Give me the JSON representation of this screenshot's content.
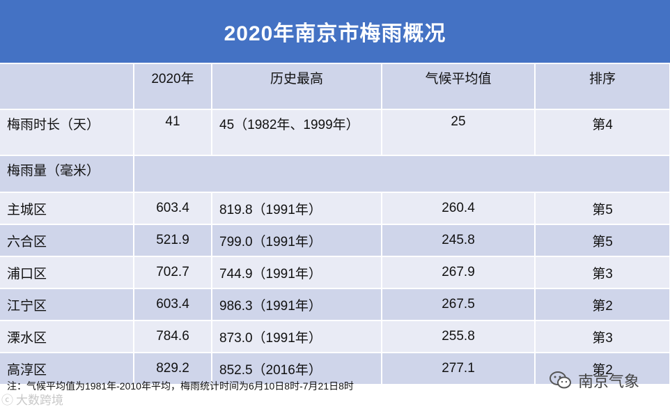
{
  "title": "2020年南京市梅雨概况",
  "header": [
    "",
    "2020年",
    "历史最高",
    "气候平均值",
    "排序"
  ],
  "duration_row": {
    "label": "梅雨时长（天）",
    "y2020": "41",
    "hist_max": "45（1982年、1999年）",
    "avg": "25",
    "rank": "第4"
  },
  "rain_section_label": "梅雨量（毫米）",
  "districts": [
    {
      "name": "主城区",
      "y2020": "603.4",
      "hist_max": "819.8（1991年）",
      "avg": "260.4",
      "rank": "第5"
    },
    {
      "name": "六合区",
      "y2020": "521.9",
      "hist_max": "799.0（1991年）",
      "avg": "245.8",
      "rank": "第5"
    },
    {
      "name": "浦口区",
      "y2020": "702.7",
      "hist_max": "744.9（1991年）",
      "avg": "267.9",
      "rank": "第3"
    },
    {
      "name": "江宁区",
      "y2020": "603.4",
      "hist_max": "986.3（1991年）",
      "avg": "267.5",
      "rank": "第2"
    },
    {
      "name": "溧水区",
      "y2020": "784.6",
      "hist_max": "873.0（1991年）",
      "avg": "255.8",
      "rank": "第3"
    },
    {
      "name": "高淳区",
      "y2020": "829.2",
      "hist_max": "852.5（2016年）",
      "avg": "277.1",
      "rank": "第2"
    }
  ],
  "note": "注：气候平均值为1981年-2010年平均，梅雨统计时间为6月10日8时-7月21日8时",
  "watermark_left": "大数跨境",
  "watermark_right": "南京气象",
  "colors": {
    "title_bg": "#4472c4",
    "row_dark": "#cfd5ea",
    "row_light": "#e9ebf5"
  }
}
